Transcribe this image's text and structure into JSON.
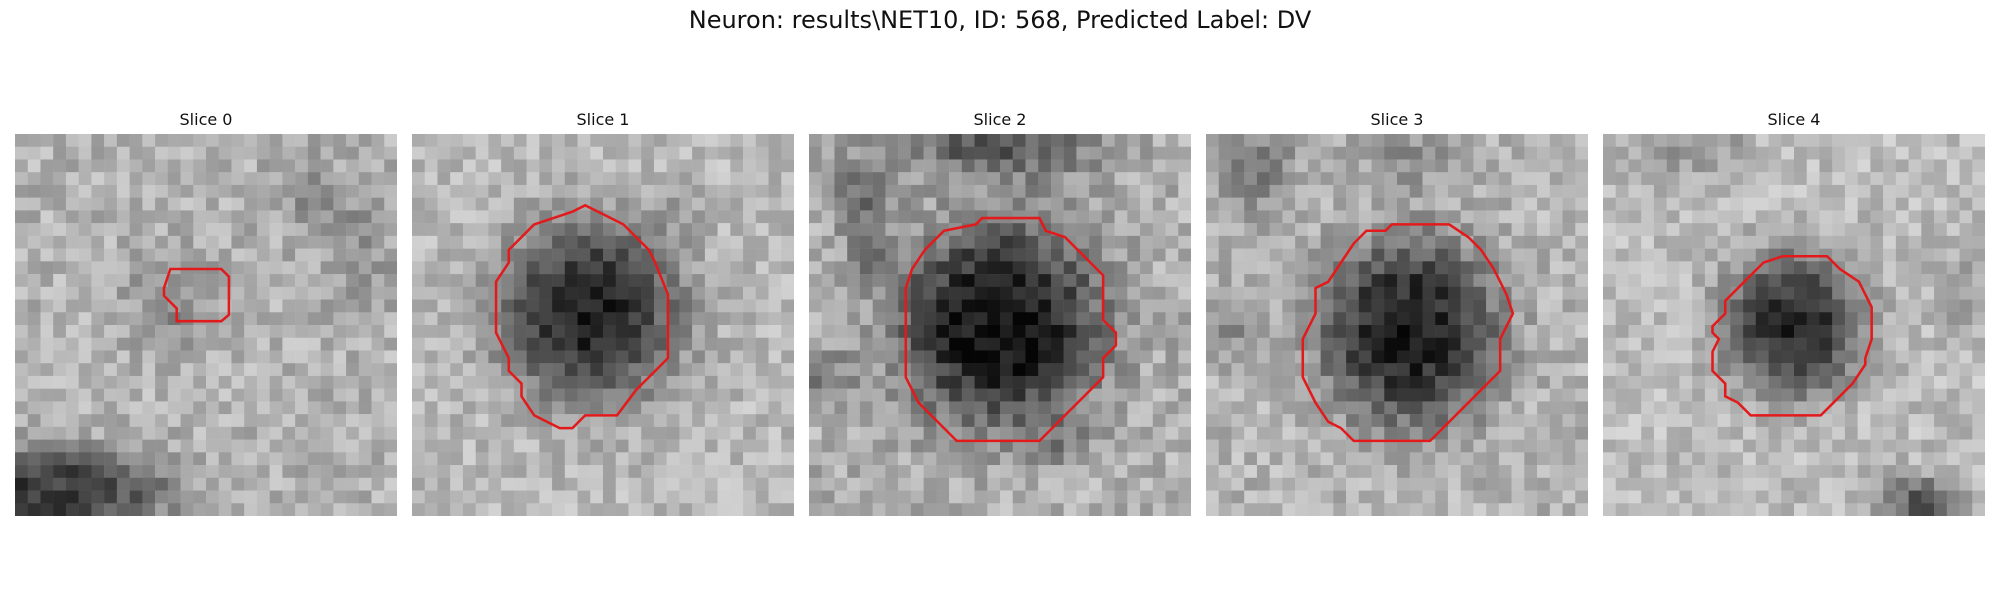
{
  "figure": {
    "title": "Neuron: results\\NET10, ID: 568, Predicted Label: DV"
  },
  "panels": [
    {
      "title": "Slice 0"
    },
    {
      "title": "Slice 1"
    },
    {
      "title": "Slice 2"
    },
    {
      "title": "Slice 3"
    },
    {
      "title": "Slice 4"
    }
  ],
  "colors": {
    "contour": "#e31a1c",
    "background": "#ffffff"
  }
}
